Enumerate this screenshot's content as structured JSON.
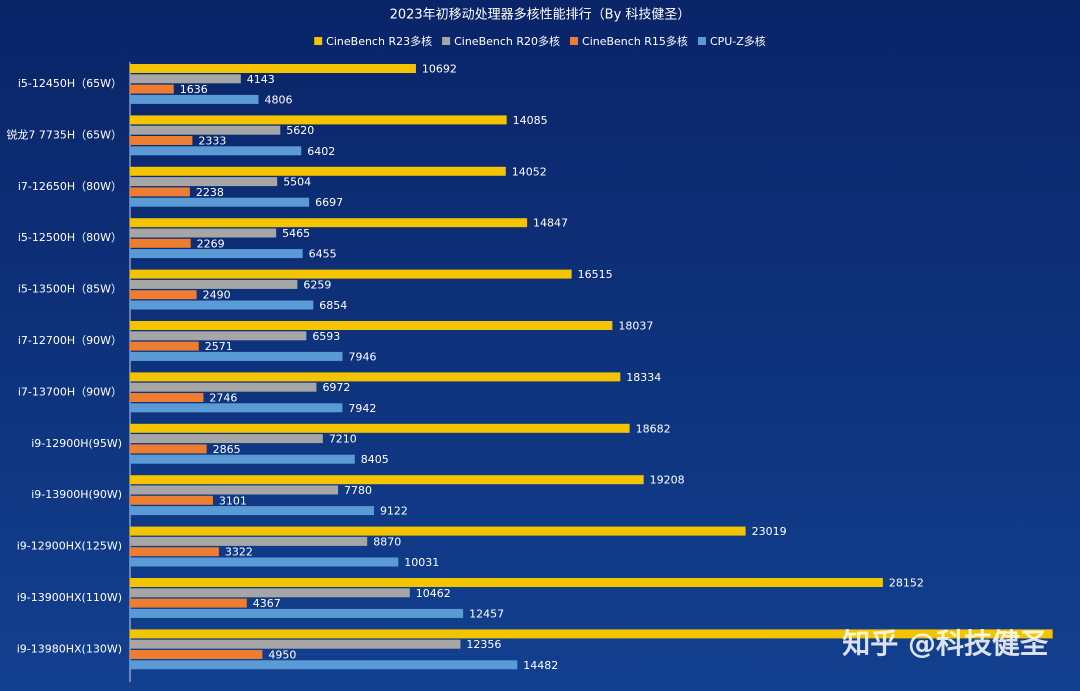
{
  "chart_data": {
    "type": "hbar",
    "title": "2023年初移动处理器多核性能排行（By 科技健圣）",
    "watermark": "知乎 @科技健圣",
    "categories": [
      "i5-12450H（65W）",
      "锐龙7 7735H（65W）",
      "i7-12650H（80W）",
      "i5-12500H（80W）",
      "i5-13500H（85W）",
      "i7-12700H（90W）",
      "i7-13700H（90W）",
      "i9-12900H(95W)",
      "i9-13900H(90W)",
      "i9-12900HX(125W)",
      "i9-13900HX(110W)",
      "i9-13980HX(130W)"
    ],
    "series": [
      {
        "name": "CineBench R23多核",
        "color": "#f5c400",
        "values": [
          10692,
          14085,
          14052,
          14847,
          16515,
          18037,
          18334,
          18682,
          19208,
          23019,
          28152,
          34500
        ]
      },
      {
        "name": "CineBench R20多核",
        "color": "#a6a6a6",
        "values": [
          4143,
          5620,
          5504,
          5465,
          6259,
          6593,
          6972,
          7210,
          7780,
          8870,
          10462,
          12356
        ]
      },
      {
        "name": "CineBench R15多核",
        "color": "#ed7d31",
        "values": [
          1636,
          2333,
          2238,
          2269,
          2490,
          2571,
          2746,
          2865,
          3101,
          3322,
          4367,
          4950
        ]
      },
      {
        "name": "CPU-Z多核",
        "color": "#5b9bd5",
        "values": [
          4806,
          6402,
          6697,
          6455,
          6854,
          7946,
          7942,
          8405,
          9122,
          10031,
          12457,
          14482
        ]
      }
    ],
    "xlim": [
      0,
      35000
    ]
  }
}
